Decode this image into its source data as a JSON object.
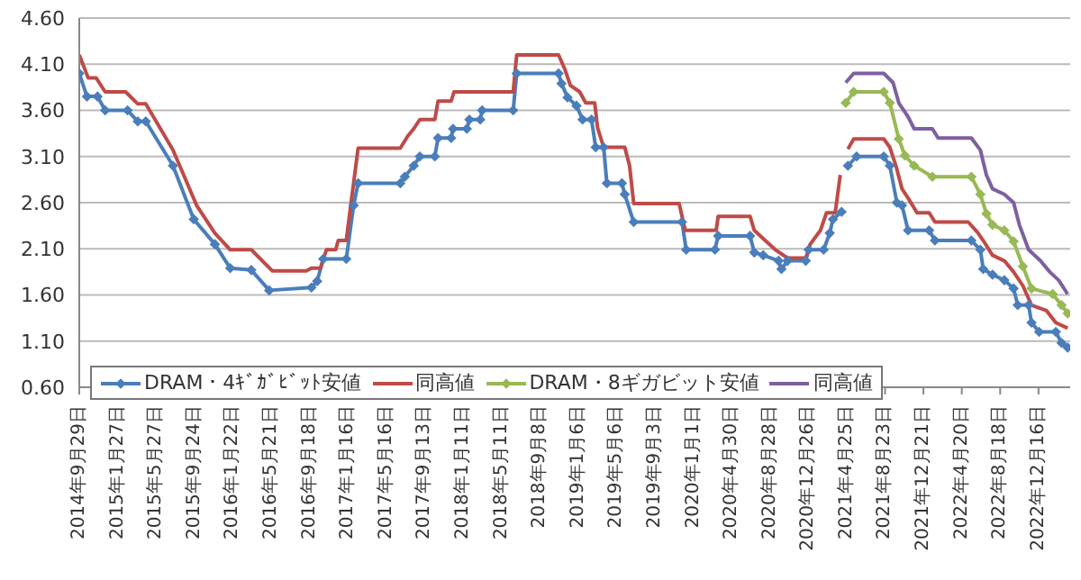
{
  "chart_data": {
    "type": "line",
    "legend": "bottom",
    "grid": "y",
    "line_style": "solid",
    "xlim": [
      "2014-09-29",
      "2023-03-25"
    ],
    "xticks": [
      {
        "value": "2014-09-29",
        "label": "2014年9月29日"
      },
      {
        "value": "2015-01-27",
        "label": "2015年1月27日"
      },
      {
        "value": "2015-05-27",
        "label": "2015年5月27日"
      },
      {
        "value": "2015-09-24",
        "label": "2015年9月24日"
      },
      {
        "value": "2016-01-22",
        "label": "2016年1月22日"
      },
      {
        "value": "2016-05-21",
        "label": "2016年5月21日"
      },
      {
        "value": "2016-09-18",
        "label": "2016年9月18日"
      },
      {
        "value": "2017-01-16",
        "label": "2017年1月16日"
      },
      {
        "value": "2017-05-16",
        "label": "2017年5月16日"
      },
      {
        "value": "2017-09-13",
        "label": "2017年9月13日"
      },
      {
        "value": "2018-01-11",
        "label": "2018年1月11日"
      },
      {
        "value": "2018-05-11",
        "label": "2018年5月11日"
      },
      {
        "value": "2018-09-08",
        "label": "2018年9月8日"
      },
      {
        "value": "2019-01-06",
        "label": "2019年1月6日"
      },
      {
        "value": "2019-05-06",
        "label": "2019年5月6日"
      },
      {
        "value": "2019-09-03",
        "label": "2019年9月3日"
      },
      {
        "value": "2020-01-01",
        "label": "2020年1月1日"
      },
      {
        "value": "2020-04-30",
        "label": "2020年4月30日"
      },
      {
        "value": "2020-08-28",
        "label": "2020年8月28日"
      },
      {
        "value": "2020-12-26",
        "label": "2020年12月26日"
      },
      {
        "value": "2021-04-25",
        "label": "2021年4月25日"
      },
      {
        "value": "2021-08-23",
        "label": "2021年8月23日"
      },
      {
        "value": "2021-12-21",
        "label": "2021年12月21日"
      },
      {
        "value": "2022-04-20",
        "label": "2022年4月20日"
      },
      {
        "value": "2022-08-18",
        "label": "2022年8月18日"
      },
      {
        "value": "2022-12-16",
        "label": "2022年12月16日"
      }
    ],
    "ylim": [
      0.6,
      4.6
    ],
    "yticks": [
      {
        "value": 0.6,
        "label": "0.60"
      },
      {
        "value": 1.1,
        "label": "1.10"
      },
      {
        "value": 1.6,
        "label": "1.60"
      },
      {
        "value": 2.1,
        "label": "2.10"
      },
      {
        "value": 2.6,
        "label": "2.60"
      },
      {
        "value": 3.1,
        "label": "3.10"
      },
      {
        "value": 3.6,
        "label": "3.60"
      },
      {
        "value": 4.1,
        "label": "4.10"
      },
      {
        "value": 4.6,
        "label": "4.60"
      }
    ],
    "series": [
      {
        "name": "DRAM・4ｷﾞｶﾞﾋﾞｯﾄ安値",
        "color": "#4a7ebb",
        "marker": "diamond",
        "x": [
          "2014-09-29",
          "2014-10-23",
          "2014-11-25",
          "2014-12-19",
          "2015-02-27",
          "2015-03-31",
          "2015-04-25",
          "2015-07-19",
          "2015-09-22",
          "2015-11-27",
          "2016-01-14",
          "2016-03-20",
          "2016-05-15",
          "2016-09-24",
          "2016-10-12",
          "2016-10-31",
          "2017-01-11",
          "2017-02-03",
          "2017-02-17",
          "2017-06-29",
          "2017-07-13",
          "2017-08-10",
          "2017-08-29",
          "2017-10-15",
          "2017-10-25",
          "2017-12-05",
          "2017-12-11",
          "2018-01-23",
          "2018-01-31",
          "2018-03-06",
          "2018-03-12",
          "2018-06-17",
          "2018-06-28",
          "2018-11-06",
          "2018-11-15",
          "2018-12-04",
          "2019-01-01",
          "2019-01-20",
          "2019-02-17",
          "2019-03-02",
          "2019-03-27",
          "2019-04-06",
          "2019-05-23",
          "2019-06-01",
          "2019-06-29",
          "2019-11-27",
          "2019-12-10",
          "2020-03-09",
          "2020-03-19",
          "2020-06-27",
          "2020-07-10",
          "2020-08-07",
          "2020-09-24",
          "2020-10-03",
          "2020-10-22",
          "2020-12-18",
          "2020-12-27",
          "2021-02-12",
          "2021-03-03",
          "2021-03-13",
          "2021-04-09",
          "2021-04-15",
          "2021-04-29",
          "2021-05-26",
          "2021-08-19",
          "2021-09-07",
          "2021-09-29",
          "2021-10-15",
          "2021-11-03",
          "2022-01-08",
          "2022-01-26",
          "2022-05-20",
          "2022-06-17",
          "2022-06-26",
          "2022-07-25",
          "2022-08-31",
          "2022-09-29",
          "2022-10-12",
          "2022-11-15",
          "2022-11-24",
          "2022-12-18",
          "2023-02-08",
          "2023-02-26",
          "2023-03-17"
        ],
        "values": [
          4.0,
          3.75,
          3.75,
          3.6,
          3.6,
          3.48,
          3.48,
          3.0,
          2.42,
          2.15,
          1.89,
          1.87,
          1.65,
          1.68,
          1.75,
          1.99,
          1.99,
          2.57,
          2.81,
          2.81,
          2.88,
          3.0,
          3.1,
          3.1,
          3.3,
          3.3,
          3.4,
          3.4,
          3.5,
          3.5,
          3.6,
          3.6,
          4.0,
          4.0,
          3.89,
          3.74,
          3.65,
          3.5,
          3.5,
          3.2,
          3.2,
          2.81,
          2.81,
          2.69,
          2.39,
          2.39,
          2.09,
          2.09,
          2.24,
          2.24,
          2.06,
          2.03,
          1.97,
          1.88,
          1.97,
          1.97,
          2.09,
          2.09,
          2.27,
          2.42,
          2.5,
          null,
          3.0,
          3.1,
          3.1,
          3.0,
          2.6,
          2.57,
          2.3,
          2.3,
          2.19,
          2.19,
          2.09,
          1.88,
          1.82,
          1.76,
          1.67,
          1.49,
          1.49,
          1.3,
          1.2,
          1.2,
          1.08,
          1.03
        ]
      },
      {
        "name": "同高値",
        "color": "#be4b48",
        "x": [
          "2014-09-29",
          "2014-10-27",
          "2014-11-21",
          "2014-12-19",
          "2015-02-21",
          "2015-03-31",
          "2015-04-25",
          "2015-07-19",
          "2015-10-01",
          "2015-11-27",
          "2016-01-14",
          "2016-03-20",
          "2016-05-25",
          "2016-09-08",
          "2016-09-24",
          "2016-10-22",
          "2016-11-10",
          "2016-12-09",
          "2016-12-17",
          "2017-01-11",
          "2017-02-17",
          "2017-06-29",
          "2017-07-22",
          "2017-08-10",
          "2017-08-29",
          "2017-10-15",
          "2017-10-25",
          "2017-12-05",
          "2017-12-14",
          "2018-06-17",
          "2018-06-28",
          "2018-11-06",
          "2018-11-25",
          "2018-12-13",
          "2019-01-11",
          "2019-01-30",
          "2019-02-27",
          "2019-03-08",
          "2019-03-27",
          "2019-06-01",
          "2019-06-16",
          "2019-06-29",
          "2019-11-18",
          "2019-12-07",
          "2020-03-13",
          "2020-03-19",
          "2020-06-27",
          "2020-07-10",
          "2020-08-07",
          "2020-09-14",
          "2020-10-22",
          "2020-12-18",
          "2021-01-01",
          "2021-02-02",
          "2021-02-21",
          "2021-03-20",
          "2021-04-05",
          "2021-04-15",
          "2021-04-29",
          "2021-05-17",
          "2021-08-19",
          "2021-09-07",
          "2021-09-26",
          "2021-10-15",
          "2021-11-03",
          "2021-12-01",
          "2022-01-08",
          "2022-01-26",
          "2022-05-10",
          "2022-06-08",
          "2022-06-26",
          "2022-07-25",
          "2022-08-31",
          "2022-09-29",
          "2022-10-28",
          "2022-11-24",
          "2023-01-10",
          "2023-02-08",
          "2023-03-17"
        ],
        "values": [
          4.2,
          3.95,
          3.95,
          3.8,
          3.8,
          3.67,
          3.67,
          3.17,
          2.57,
          2.27,
          2.09,
          2.09,
          1.86,
          1.86,
          1.89,
          1.89,
          2.09,
          2.09,
          2.19,
          2.19,
          3.19,
          3.19,
          3.32,
          3.4,
          3.5,
          3.5,
          3.7,
          3.7,
          3.8,
          3.8,
          4.2,
          4.2,
          4.05,
          3.87,
          3.8,
          3.68,
          3.68,
          3.41,
          3.2,
          3.2,
          3.0,
          2.59,
          2.59,
          2.3,
          2.3,
          2.45,
          2.45,
          2.3,
          2.21,
          2.09,
          2.0,
          2.0,
          2.15,
          2.3,
          2.49,
          2.49,
          2.9,
          null,
          3.18,
          3.29,
          3.29,
          3.2,
          3.0,
          2.75,
          2.65,
          2.49,
          2.49,
          2.39,
          2.39,
          2.28,
          2.19,
          2.03,
          1.97,
          1.85,
          1.7,
          1.49,
          1.43,
          1.3,
          1.24
        ]
      },
      {
        "name": "DRAM・8ギガビット安値",
        "color": "#98b954",
        "marker": "diamond",
        "x": [
          "2021-04-22",
          "2021-05-17",
          "2021-08-19",
          "2021-09-07",
          "2021-10-05",
          "2021-10-24",
          "2021-11-22",
          "2022-01-18",
          "2022-05-20",
          "2022-06-17",
          "2022-07-06",
          "2022-07-25",
          "2022-08-31",
          "2022-09-29",
          "2022-10-28",
          "2022-11-24",
          "2023-01-29",
          "2023-02-26",
          "2023-03-17"
        ],
        "values": [
          3.68,
          3.8,
          3.8,
          3.68,
          3.29,
          3.11,
          3.0,
          2.88,
          2.88,
          2.69,
          2.48,
          2.36,
          2.3,
          2.18,
          1.91,
          1.67,
          1.61,
          1.49,
          1.4
        ]
      },
      {
        "name": "同高値",
        "color": "#7d60a0",
        "x": [
          "2021-04-22",
          "2021-05-17",
          "2021-08-19",
          "2021-09-17",
          "2021-10-05",
          "2021-11-03",
          "2021-11-22",
          "2022-01-18",
          "2022-02-05",
          "2022-05-20",
          "2022-06-17",
          "2022-07-06",
          "2022-07-25",
          "2022-08-31",
          "2022-09-29",
          "2022-10-17",
          "2022-11-15",
          "2022-12-22",
          "2023-01-20",
          "2023-02-17",
          "2023-03-17"
        ],
        "values": [
          3.9,
          4.0,
          4.0,
          3.9,
          3.68,
          3.53,
          3.4,
          3.4,
          3.3,
          3.3,
          3.17,
          2.9,
          2.75,
          2.69,
          2.6,
          2.36,
          2.09,
          1.97,
          1.85,
          1.76,
          1.61
        ]
      }
    ]
  }
}
